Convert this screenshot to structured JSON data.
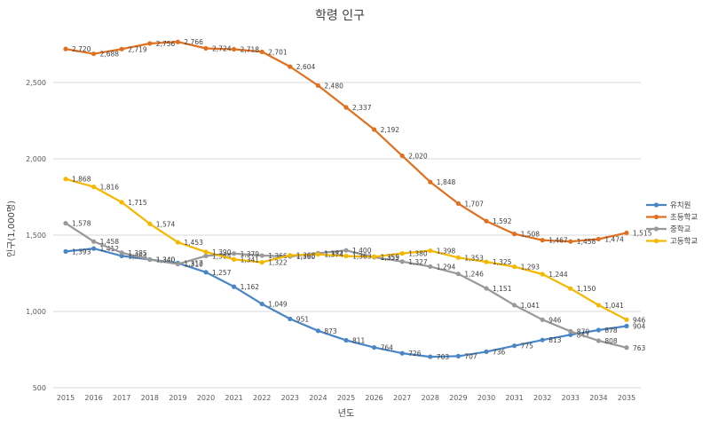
{
  "chart_data": {
    "type": "line",
    "title": "학령 인구",
    "xlabel": "년도",
    "ylabel": "인구(1,000명)",
    "x": [
      "2015",
      "2016",
      "2017",
      "2018",
      "2019",
      "2020",
      "2021",
      "2022",
      "2023",
      "2024",
      "2025",
      "2026",
      "2027",
      "2028",
      "2029",
      "2030",
      "2031",
      "2032",
      "2033",
      "2034",
      "2035"
    ],
    "y_ticks": [
      "500",
      "1,000",
      "1,500",
      "2,000",
      "2,500"
    ],
    "ylim": [
      500,
      2800
    ],
    "grid": "horizontal",
    "legend_position": "right",
    "series": [
      {
        "name": "유치원",
        "color": "#4a86c5",
        "values": [
          1393,
          1412,
          1364,
          1340,
          1317,
          1257,
          1162,
          1049,
          951,
          873,
          811,
          764,
          726,
          703,
          707,
          736,
          775,
          813,
          847,
          878,
          904
        ],
        "labels": [
          "1,393",
          "1,412",
          "1,364",
          "1,340",
          "1,317",
          "1,257",
          "1,162",
          "1,049",
          "951",
          "873",
          "811",
          "764",
          "726",
          "703",
          "707",
          "736",
          "775",
          "813",
          "847",
          "878",
          "904"
        ]
      },
      {
        "name": "초등학교",
        "color": "#e07020",
        "values": [
          2720,
          2688,
          2719,
          2756,
          2766,
          2724,
          2718,
          2701,
          2604,
          2480,
          2337,
          2192,
          2020,
          1848,
          1707,
          1592,
          1508,
          1467,
          1458,
          1474,
          1515
        ],
        "labels": [
          "2,720",
          "2,688",
          "2,719",
          "2,756",
          "2,766",
          "2,724",
          "2,718",
          "2,701",
          "2,604",
          "2,480",
          "2,337",
          "2,192",
          "2,020",
          "1,848",
          "1,707",
          "1,592",
          "1,508",
          "1,467",
          "1,458",
          "1,474",
          "1,515"
        ]
      },
      {
        "name": "중학교",
        "color": "#999999",
        "values": [
          1578,
          1458,
          1385,
          1340,
          1310,
          1364,
          1379,
          1366,
          1360,
          1382,
          1400,
          1355,
          1327,
          1294,
          1246,
          1151,
          1041,
          946,
          870,
          808,
          763
        ],
        "labels": [
          "1,578",
          "1,458",
          "1,385",
          "1,340",
          "1,310",
          "1,364",
          "1,379",
          "1,366",
          "1,360",
          "1,382",
          "1,400",
          "1,355",
          "1,327",
          "1,294",
          "1,246",
          "1,151",
          "1,041",
          "946",
          "870",
          "808",
          "763"
        ]
      },
      {
        "name": "고등학교",
        "color": "#f5b800",
        "values": [
          1868,
          1816,
          1715,
          1574,
          1453,
          1390,
          1341,
          1322,
          1368,
          1374,
          1363,
          1359,
          1380,
          1398,
          1353,
          1325,
          1293,
          1244,
          1150,
          1041,
          946
        ],
        "labels": [
          "1,868",
          "1,816",
          "1,715",
          "1,574",
          "1,453",
          "1,390",
          "1,341",
          "1,322",
          "1,368",
          "1,374",
          "1,363",
          "1,359",
          "1,380",
          "1,398",
          "1,353",
          "1,325",
          "1,293",
          "1,244",
          "1,150",
          "1,041",
          "946"
        ]
      }
    ]
  }
}
